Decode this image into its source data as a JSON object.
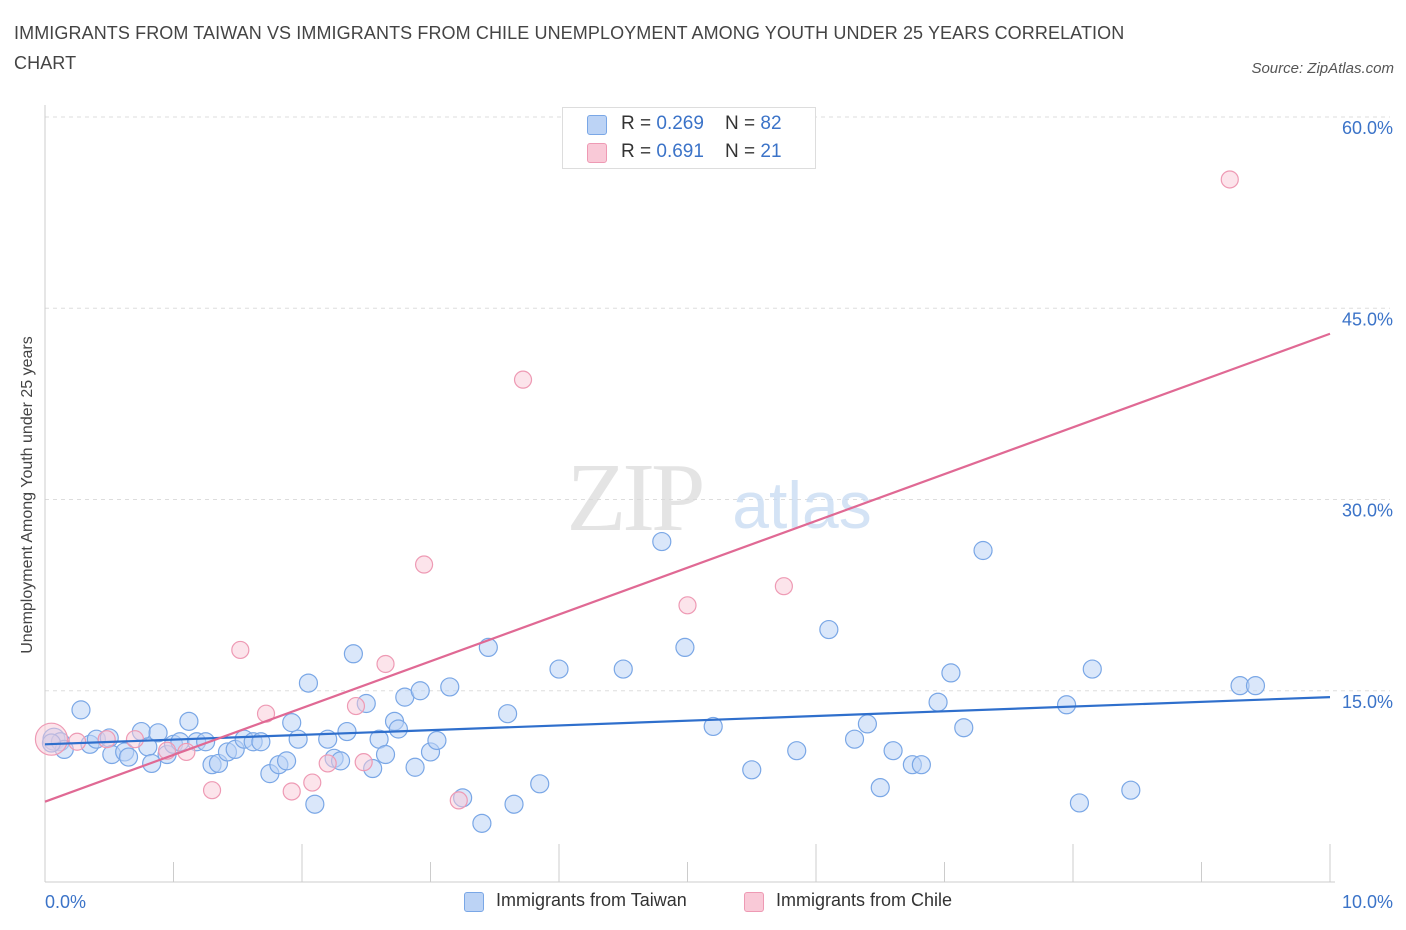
{
  "title": "IMMIGRANTS FROM TAIWAN VS IMMIGRANTS FROM CHILE UNEMPLOYMENT AMONG YOUTH UNDER 25 YEARS CORRELATION CHART",
  "source": "Source: ZipAtlas.com",
  "watermark": {
    "zip": "ZIP",
    "atlas": "atlas"
  },
  "legend_top": [
    {
      "r_label": "R = ",
      "r_value": "0.269",
      "n_label": "N = ",
      "n_value": "82"
    },
    {
      "r_label": "R = ",
      "r_value": "0.691",
      "n_label": "N = ",
      "n_value": "21"
    }
  ],
  "legend_bottom": [
    "Immigrants from Taiwan",
    "Immigrants from Chile"
  ],
  "colors": {
    "taiwan_fill": "#bcd3f5",
    "taiwan_stroke": "#7aa7e6",
    "taiwan_line": "#2f6fcc",
    "chile_fill": "#f9c9d7",
    "chile_stroke": "#ee9ab4",
    "chile_line": "#e06994",
    "axis_text": "#3b73c8",
    "grid": "#dddddd"
  },
  "chart_data": {
    "type": "scatter",
    "title": "IMMIGRANTS FROM TAIWAN VS IMMIGRANTS FROM CHILE UNEMPLOYMENT AMONG YOUTH UNDER 25 YEARS CORRELATION CHART",
    "xlabel": "",
    "ylabel": "Unemployment Among Youth under 25 years",
    "xlim": [
      0,
      10
    ],
    "ylim": [
      0,
      60
    ],
    "x_tick_labels": [
      "0.0%",
      "10.0%"
    ],
    "y_ticks": [
      15,
      30,
      45,
      60
    ],
    "y_tick_labels": [
      "15.0%",
      "30.0%",
      "45.0%",
      "60.0%"
    ],
    "grid": true,
    "legend_position": "top-center",
    "series": [
      {
        "name": "Immigrants from Taiwan",
        "R": 0.269,
        "N": 82,
        "trend": {
          "x": [
            0,
            10
          ],
          "y": [
            10.8,
            14.5
          ]
        },
        "points": [
          [
            0.07,
            11.2
          ],
          [
            0.12,
            11.0
          ],
          [
            0.15,
            10.4
          ],
          [
            0.28,
            13.5
          ],
          [
            0.35,
            10.8
          ],
          [
            0.4,
            11.2
          ],
          [
            0.5,
            11.3
          ],
          [
            0.52,
            10.0
          ],
          [
            0.62,
            10.2
          ],
          [
            0.65,
            9.8
          ],
          [
            0.75,
            11.8
          ],
          [
            0.8,
            10.6
          ],
          [
            0.83,
            9.3
          ],
          [
            0.88,
            11.7
          ],
          [
            0.95,
            10.0
          ],
          [
            1.0,
            10.8
          ],
          [
            1.05,
            11.0
          ],
          [
            1.12,
            12.6
          ],
          [
            1.18,
            11.0
          ],
          [
            1.25,
            11.0
          ],
          [
            1.3,
            9.2
          ],
          [
            1.35,
            9.3
          ],
          [
            1.42,
            10.2
          ],
          [
            1.48,
            10.4
          ],
          [
            1.55,
            11.2
          ],
          [
            1.62,
            11.0
          ],
          [
            1.68,
            11.0
          ],
          [
            1.75,
            8.5
          ],
          [
            1.82,
            9.2
          ],
          [
            1.88,
            9.5
          ],
          [
            1.92,
            12.5
          ],
          [
            1.97,
            11.2
          ],
          [
            2.05,
            15.6
          ],
          [
            2.1,
            6.1
          ],
          [
            2.2,
            11.2
          ],
          [
            2.25,
            9.7
          ],
          [
            2.3,
            9.5
          ],
          [
            2.35,
            11.8
          ],
          [
            2.4,
            17.9
          ],
          [
            2.5,
            14.0
          ],
          [
            2.55,
            8.9
          ],
          [
            2.6,
            11.2
          ],
          [
            2.65,
            10.0
          ],
          [
            2.72,
            12.6
          ],
          [
            2.75,
            12.0
          ],
          [
            2.8,
            14.5
          ],
          [
            2.88,
            9.0
          ],
          [
            2.92,
            15.0
          ],
          [
            3.0,
            10.2
          ],
          [
            3.05,
            11.1
          ],
          [
            3.15,
            15.3
          ],
          [
            3.25,
            6.6
          ],
          [
            3.4,
            4.6
          ],
          [
            3.45,
            18.4
          ],
          [
            3.6,
            13.2
          ],
          [
            3.65,
            6.1
          ],
          [
            3.85,
            7.7
          ],
          [
            4.0,
            16.7
          ],
          [
            4.5,
            16.7
          ],
          [
            4.8,
            26.7
          ],
          [
            4.98,
            18.4
          ],
          [
            5.2,
            12.2
          ],
          [
            5.5,
            8.8
          ],
          [
            5.85,
            10.3
          ],
          [
            6.1,
            19.8
          ],
          [
            6.3,
            11.2
          ],
          [
            6.4,
            12.4
          ],
          [
            6.5,
            7.4
          ],
          [
            6.6,
            10.3
          ],
          [
            6.75,
            9.2
          ],
          [
            6.82,
            9.2
          ],
          [
            6.95,
            14.1
          ],
          [
            7.05,
            16.4
          ],
          [
            7.15,
            12.1
          ],
          [
            7.3,
            26.0
          ],
          [
            7.95,
            13.9
          ],
          [
            8.05,
            6.2
          ],
          [
            8.15,
            16.7
          ],
          [
            8.45,
            7.2
          ],
          [
            9.3,
            15.4
          ],
          [
            9.42,
            15.4
          ],
          [
            0.05,
            10.9
          ]
        ]
      },
      {
        "name": "Immigrants from Chile",
        "R": 0.691,
        "N": 21,
        "trend": {
          "x": [
            0,
            10
          ],
          "y": [
            6.3,
            43.0
          ]
        },
        "points": [
          [
            0.05,
            11.2
          ],
          [
            0.25,
            11.0
          ],
          [
            0.48,
            11.2
          ],
          [
            0.7,
            11.2
          ],
          [
            0.95,
            10.3
          ],
          [
            1.1,
            10.2
          ],
          [
            1.3,
            7.2
          ],
          [
            1.52,
            18.2
          ],
          [
            1.72,
            13.2
          ],
          [
            1.92,
            7.1
          ],
          [
            2.08,
            7.8
          ],
          [
            2.2,
            9.3
          ],
          [
            2.42,
            13.8
          ],
          [
            2.48,
            9.4
          ],
          [
            2.65,
            17.1
          ],
          [
            2.95,
            24.9
          ],
          [
            3.22,
            6.4
          ],
          [
            3.72,
            39.4
          ],
          [
            5.0,
            21.7
          ],
          [
            5.75,
            23.2
          ],
          [
            9.22,
            55.1
          ]
        ]
      }
    ]
  }
}
